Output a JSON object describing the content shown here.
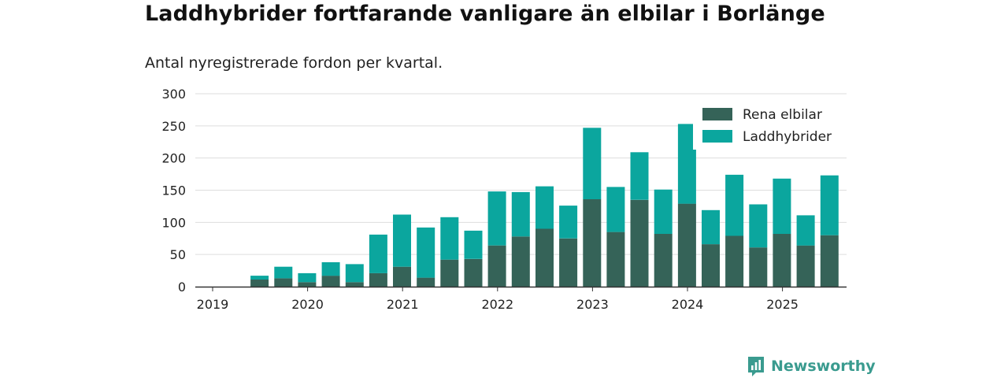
{
  "title": "Laddhybrider fortfarande vanligare än elbilar i Borlänge",
  "subtitle": "Antal nyregistrerade fordon per kvartal.",
  "brand": {
    "name": "Newsworthy",
    "icon": "newsworthy-logo-icon",
    "color": "#3a9b8f"
  },
  "chart_data": {
    "type": "bar",
    "stacked": true,
    "categories": [
      "2019 Q1",
      "2019 Q2",
      "2019 Q3",
      "2019 Q4",
      "2020 Q1",
      "2020 Q2",
      "2020 Q3",
      "2020 Q4",
      "2021 Q1",
      "2021 Q2",
      "2021 Q3",
      "2021 Q4",
      "2022 Q1",
      "2022 Q2",
      "2022 Q3",
      "2022 Q4",
      "2023 Q1",
      "2023 Q2",
      "2023 Q3",
      "2023 Q4",
      "2024 Q1",
      "2024 Q2",
      "2024 Q3",
      "2024 Q4",
      "2025 Q1",
      "2025 Q2"
    ],
    "series": [
      {
        "name": "Rena elbilar",
        "color": "#356358",
        "values": [
          0,
          11,
          13,
          7,
          17,
          7,
          21,
          31,
          14,
          42,
          43,
          64,
          78,
          90,
          75,
          136,
          85,
          135,
          82,
          129,
          66,
          79,
          61,
          82,
          64,
          80
        ]
      },
      {
        "name": "Laddhybrider",
        "color": "#0ba69e",
        "values": [
          0,
          6,
          18,
          14,
          21,
          28,
          60,
          81,
          78,
          66,
          44,
          84,
          69,
          66,
          51,
          111,
          70,
          74,
          69,
          124,
          53,
          95,
          67,
          86,
          47,
          93
        ]
      }
    ],
    "ylim": [
      0,
      300
    ],
    "yticks": [
      "0",
      "50",
      "100",
      "150",
      "200",
      "250",
      "300"
    ],
    "xticks": [
      "2019",
      "2020",
      "2021",
      "2022",
      "2023",
      "2024",
      "2025"
    ],
    "grid": true,
    "legend_position": "top-right"
  }
}
